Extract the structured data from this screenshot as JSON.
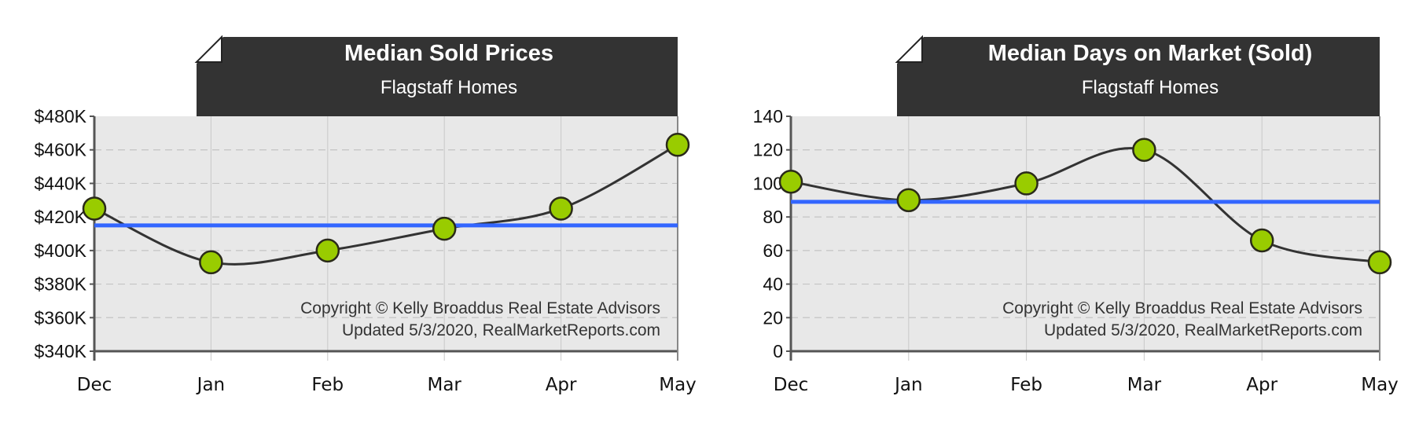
{
  "chart_data": [
    {
      "type": "line",
      "title": "Median Sold Prices",
      "subtitle": "Flagstaff Homes",
      "categories": [
        "Dec",
        "Jan",
        "Feb",
        "Mar",
        "Apr",
        "May"
      ],
      "values": [
        425000,
        393000,
        400000,
        413000,
        425000,
        463000
      ],
      "average_line": 415000,
      "ylim": [
        340000,
        480000
      ],
      "yticks": [
        340000,
        360000,
        380000,
        400000,
        420000,
        440000,
        460000,
        480000
      ],
      "ytick_labels": [
        "$340K",
        "$360K",
        "$380K",
        "$400K",
        "$420K",
        "$440K",
        "$460K",
        "$480K"
      ],
      "grid": true,
      "copyright": "Copyright © Kelly Broaddus Real Estate Advisors",
      "updated": "Updated 5/3/2020, RealMarketReports.com"
    },
    {
      "type": "line",
      "title": "Median Days on Market (Sold)",
      "subtitle": "Flagstaff Homes",
      "categories": [
        "Dec",
        "Jan",
        "Feb",
        "Mar",
        "Apr",
        "May"
      ],
      "values": [
        101,
        90,
        100,
        120,
        66,
        53
      ],
      "average_line": 89,
      "ylim": [
        0,
        140
      ],
      "yticks": [
        0,
        20,
        40,
        60,
        80,
        100,
        120,
        140
      ],
      "ytick_labels": [
        "0",
        "20",
        "40",
        "60",
        "80",
        "100",
        "120",
        "140"
      ],
      "grid": true,
      "copyright": "Copyright © Kelly Broaddus Real Estate Advisors",
      "updated": "Updated 5/3/2020, RealMarketReports.com"
    }
  ],
  "colors": {
    "header_bg": "#333333",
    "plot_bg": "#e8e8e8",
    "line": "#333333",
    "marker_fill": "#99cc00",
    "marker_stroke": "#2a2a1a",
    "average_line": "#3366ff"
  }
}
